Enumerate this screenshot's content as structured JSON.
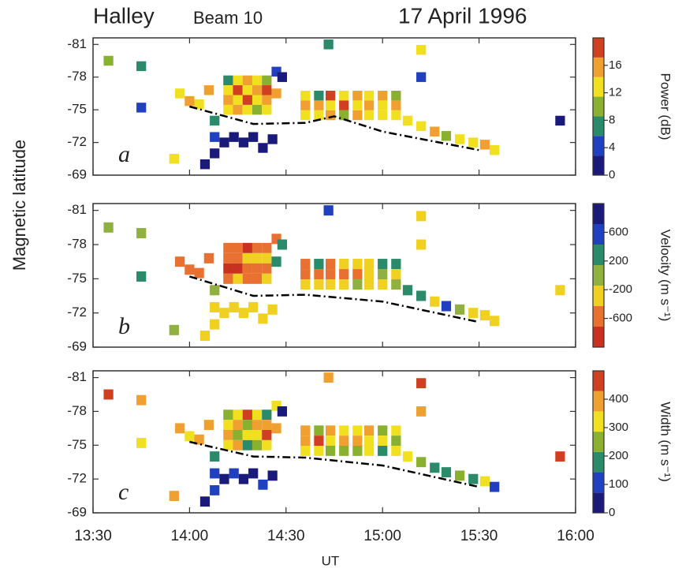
{
  "header": {
    "station": "Halley",
    "beam": "Beam 10",
    "date": "17 April 1996",
    "ylabel": "Magnetic latitude"
  },
  "chart_data": [
    {
      "type": "heatmap",
      "panel_label": "a",
      "xlim": [
        13.5,
        16
      ],
      "ylim": [
        -69,
        -81.6
      ],
      "yticks": [
        -81,
        -78,
        -75,
        -72,
        -69
      ],
      "colorbar": {
        "label": "Power (dB)",
        "lim": [
          0,
          20
        ],
        "ticks": [
          0,
          4,
          8,
          12,
          16
        ],
        "colors": [
          "#1a1a7a",
          "#2040c0",
          "#2a8a6a",
          "#8ab030",
          "#f0e020",
          "#f0a030",
          "#d04020"
        ]
      },
      "x": [
        13.58,
        13.75,
        13.75,
        13.92,
        14.72,
        15.2,
        15.2,
        15.92,
        13.95,
        14.0,
        14.05,
        14.1,
        14.08,
        14.13,
        14.13,
        14.18,
        14.23,
        14.28,
        14.33,
        14.38,
        14.43,
        14.13,
        14.2,
        14.2,
        14.2,
        14.2,
        14.25,
        14.25,
        14.25,
        14.25,
        14.3,
        14.3,
        14.3,
        14.3,
        14.35,
        14.35,
        14.35,
        14.35,
        14.4,
        14.4,
        14.4,
        14.4,
        14.45,
        14.45,
        14.48,
        14.6,
        14.6,
        14.6,
        14.67,
        14.67,
        14.67,
        14.73,
        14.73,
        14.73,
        14.8,
        14.8,
        14.8,
        14.87,
        14.87,
        14.87,
        14.93,
        14.93,
        14.93,
        15.0,
        15.0,
        15.0,
        15.07,
        15.07,
        15.07,
        15.13,
        15.2,
        15.27,
        15.33,
        15.4,
        15.47,
        15.53,
        15.58
      ],
      "y": [
        -79.5,
        -79,
        -75.2,
        -70.5,
        -81,
        -80.5,
        -78,
        -74,
        -76.5,
        -75.8,
        -75.5,
        -76.8,
        -70,
        -71,
        -72.5,
        -72,
        -72.5,
        -72,
        -72.5,
        -71.5,
        -72.3,
        -74,
        -77.7,
        -76.8,
        -75.9,
        -75,
        -77.7,
        -76.8,
        -75.9,
        -75,
        -77.7,
        -76.8,
        -75.9,
        -75,
        -77.7,
        -76.8,
        -75.9,
        -75,
        -77.7,
        -76.8,
        -75.9,
        -75,
        -76.5,
        -78.5,
        -78,
        -76.3,
        -75.4,
        -74.5,
        -76.3,
        -75.4,
        -74.5,
        -76.3,
        -75.4,
        -74.5,
        -76.3,
        -75.4,
        -74.5,
        -76.3,
        -75.4,
        -74.5,
        -76.3,
        -75.4,
        -74.5,
        -76.3,
        -75.4,
        -74.5,
        -76.3,
        -75.4,
        -74.5,
        -74,
        -73.5,
        -73,
        -72.6,
        -72.3,
        -72,
        -71.8,
        -71.3
      ],
      "values": [
        10,
        8,
        4,
        14,
        6,
        12,
        4,
        2,
        14,
        16,
        12,
        16,
        2,
        2,
        4,
        2,
        2,
        2,
        2,
        2,
        2,
        8,
        8,
        14,
        16,
        12,
        12,
        18,
        14,
        16,
        16,
        12,
        18,
        14,
        14,
        16,
        12,
        10,
        10,
        18,
        16,
        14,
        16,
        4,
        2,
        14,
        16,
        12,
        6,
        16,
        14,
        18,
        12,
        16,
        14,
        18,
        10,
        16,
        12,
        16,
        12,
        16,
        14,
        16,
        14,
        12,
        10,
        16,
        14,
        12,
        14,
        16,
        10,
        14,
        12,
        16,
        14
      ],
      "boundary": {
        "x": [
          14.0,
          14.33,
          14.6,
          14.75,
          15.0,
          15.5
        ],
        "y": [
          -75.3,
          -73.7,
          -73.8,
          -74.4,
          -73.0,
          -71.3
        ]
      }
    },
    {
      "type": "heatmap",
      "panel_label": "b",
      "xlim": [
        13.5,
        16
      ],
      "ylim": [
        -69,
        -81.6
      ],
      "yticks": [
        -81,
        -78,
        -75,
        -72,
        -69
      ],
      "colorbar": {
        "label": "Velocity (m s⁻¹)",
        "lim": [
          -1000,
          1000
        ],
        "ticks": [
          -600,
          -200,
          200,
          600
        ],
        "colors": [
          "#c83020",
          "#e87030",
          "#f0d020",
          "#90b040",
          "#2a8a6a",
          "#2040c0",
          "#1a1a7a"
        ]
      },
      "x": [
        13.58,
        13.75,
        13.75,
        13.92,
        14.72,
        15.2,
        15.2,
        15.92,
        13.95,
        14.0,
        14.05,
        14.1,
        14.08,
        14.13,
        14.13,
        14.18,
        14.23,
        14.28,
        14.33,
        14.38,
        14.43,
        14.13,
        14.2,
        14.2,
        14.2,
        14.2,
        14.25,
        14.25,
        14.25,
        14.25,
        14.3,
        14.3,
        14.3,
        14.3,
        14.35,
        14.35,
        14.35,
        14.35,
        14.4,
        14.4,
        14.4,
        14.4,
        14.45,
        14.45,
        14.48,
        14.6,
        14.6,
        14.6,
        14.67,
        14.67,
        14.67,
        14.73,
        14.73,
        14.73,
        14.8,
        14.8,
        14.8,
        14.87,
        14.87,
        14.87,
        14.93,
        14.93,
        14.93,
        15.0,
        15.0,
        15.0,
        15.07,
        15.07,
        15.07,
        15.13,
        15.2,
        15.27,
        15.33,
        15.4,
        15.47,
        15.53,
        15.58
      ],
      "y": [
        -79.5,
        -79,
        -75.2,
        -70.5,
        -81,
        -80.5,
        -78,
        -74,
        -76.5,
        -75.8,
        -75.5,
        -76.8,
        -70,
        -71,
        -72.5,
        -72,
        -72.5,
        -72,
        -72.5,
        -71.5,
        -72.3,
        -74,
        -77.7,
        -76.8,
        -75.9,
        -75,
        -77.7,
        -76.8,
        -75.9,
        -75,
        -77.7,
        -76.8,
        -75.9,
        -75,
        -77.7,
        -76.8,
        -75.9,
        -75,
        -77.7,
        -76.8,
        -75.9,
        -75,
        -76.5,
        -78.5,
        -78,
        -76.3,
        -75.4,
        -74.5,
        -76.3,
        -75.4,
        -74.5,
        -76.3,
        -75.4,
        -74.5,
        -76.3,
        -75.4,
        -74.5,
        -76.3,
        -75.4,
        -74.5,
        -76.3,
        -75.4,
        -74.5,
        -76.3,
        -75.4,
        -74.5,
        -76.3,
        -75.4,
        -74.5,
        -74,
        -73.5,
        -73,
        -72.6,
        -72.3,
        -72,
        -71.8,
        -71.3
      ],
      "values": [
        -100,
        -100,
        200,
        -100,
        600,
        -200,
        -400,
        -300,
        -700,
        -600,
        -500,
        -700,
        -200,
        -200,
        -300,
        -200,
        -200,
        -300,
        -200,
        -300,
        -200,
        -100,
        -700,
        -600,
        -800,
        -500,
        -600,
        -700,
        -800,
        -400,
        -800,
        -300,
        -700,
        -600,
        -700,
        -400,
        -600,
        -500,
        -500,
        -200,
        -700,
        -400,
        400,
        -600,
        200,
        -500,
        -600,
        -400,
        200,
        -700,
        -300,
        -600,
        -500,
        -200,
        -400,
        -600,
        -300,
        -200,
        -500,
        100,
        -300,
        -400,
        -200,
        200,
        -100,
        -300,
        400,
        -200,
        -100,
        200,
        400,
        -200,
        600,
        -100,
        -300,
        -200,
        -400
      ],
      "boundary": {
        "x": [
          14.0,
          14.33,
          14.6,
          15.0,
          15.5
        ],
        "y": [
          -75.2,
          -73.5,
          -73.6,
          -73.0,
          -71.2
        ]
      }
    },
    {
      "type": "heatmap",
      "panel_label": "c",
      "xlabel": "UT",
      "xlim": [
        13.5,
        16
      ],
      "ylim": [
        -69,
        -81.6
      ],
      "yticks": [
        -81,
        -78,
        -75,
        -72,
        -69
      ],
      "xticks": [
        {
          "value": 13.5,
          "label": "13:30"
        },
        {
          "value": 14,
          "label": "14:00"
        },
        {
          "value": 14.5,
          "label": "14:30"
        },
        {
          "value": 15,
          "label": "15:00"
        },
        {
          "value": 15.5,
          "label": "15:30"
        },
        {
          "value": 16,
          "label": "16:00"
        }
      ],
      "colorbar": {
        "label": "Width (m s⁻¹)",
        "lim": [
          0,
          500
        ],
        "ticks": [
          0,
          100,
          200,
          300,
          400
        ],
        "colors": [
          "#1a1a7a",
          "#2040c0",
          "#2a8a6a",
          "#8ab030",
          "#f0e020",
          "#f0a030",
          "#d04020"
        ]
      },
      "x": [
        13.58,
        13.75,
        13.75,
        13.92,
        14.72,
        15.2,
        15.2,
        15.92,
        13.95,
        14.0,
        14.05,
        14.1,
        14.08,
        14.13,
        14.13,
        14.18,
        14.23,
        14.28,
        14.33,
        14.38,
        14.43,
        14.13,
        14.2,
        14.2,
        14.2,
        14.2,
        14.25,
        14.25,
        14.25,
        14.25,
        14.3,
        14.3,
        14.3,
        14.3,
        14.35,
        14.35,
        14.35,
        14.35,
        14.4,
        14.4,
        14.4,
        14.4,
        14.45,
        14.45,
        14.48,
        14.6,
        14.6,
        14.6,
        14.67,
        14.67,
        14.67,
        14.73,
        14.73,
        14.73,
        14.8,
        14.8,
        14.8,
        14.87,
        14.87,
        14.87,
        14.93,
        14.93,
        14.93,
        15.0,
        15.0,
        15.0,
        15.07,
        15.07,
        15.07,
        15.13,
        15.2,
        15.27,
        15.33,
        15.4,
        15.47,
        15.53,
        15.58
      ],
      "y": [
        -79.5,
        -79,
        -75.2,
        -70.5,
        -81,
        -80.5,
        -78,
        -74,
        -76.5,
        -75.8,
        -75.5,
        -76.8,
        -70,
        -71,
        -72.5,
        -72,
        -72.5,
        -72,
        -72.5,
        -71.5,
        -72.3,
        -74,
        -77.7,
        -76.8,
        -75.9,
        -75,
        -77.7,
        -76.8,
        -75.9,
        -75,
        -77.7,
        -76.8,
        -75.9,
        -75,
        -77.7,
        -76.8,
        -75.9,
        -75,
        -77.7,
        -76.8,
        -75.9,
        -75,
        -76.5,
        -78.5,
        -78,
        -76.3,
        -75.4,
        -74.5,
        -76.3,
        -75.4,
        -74.5,
        -76.3,
        -75.4,
        -74.5,
        -76.3,
        -75.4,
        -74.5,
        -76.3,
        -75.4,
        -74.5,
        -76.3,
        -75.4,
        -74.5,
        -76.3,
        -75.4,
        -74.5,
        -76.3,
        -75.4,
        -74.5,
        -74,
        -73.5,
        -73,
        -72.6,
        -72.3,
        -72,
        -71.8,
        -71.3
      ],
      "values": [
        450,
        420,
        350,
        420,
        420,
        450,
        420,
        440,
        400,
        350,
        380,
        420,
        60,
        80,
        100,
        60,
        80,
        60,
        50,
        80,
        70,
        150,
        250,
        350,
        400,
        300,
        300,
        420,
        250,
        380,
        450,
        280,
        350,
        200,
        300,
        400,
        320,
        250,
        200,
        380,
        450,
        300,
        400,
        300,
        50,
        380,
        420,
        300,
        250,
        450,
        350,
        400,
        300,
        220,
        350,
        420,
        280,
        300,
        380,
        250,
        420,
        300,
        350,
        280,
        350,
        200,
        320,
        250,
        300,
        300,
        250,
        200,
        150,
        250,
        180,
        300,
        120
      ],
      "boundary": {
        "x": [
          14.0,
          14.33,
          14.6,
          15.0,
          15.5
        ],
        "y": [
          -75.3,
          -74.0,
          -73.9,
          -73.2,
          -71.3
        ]
      }
    }
  ]
}
